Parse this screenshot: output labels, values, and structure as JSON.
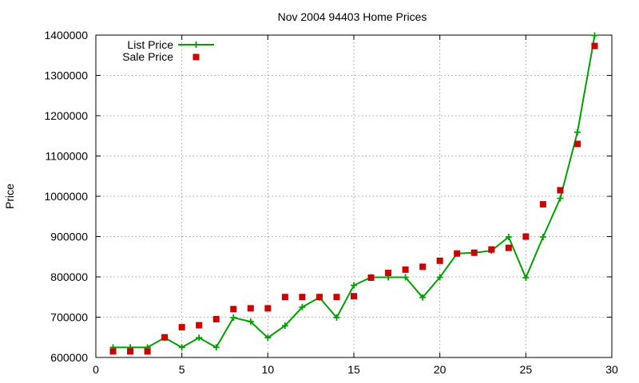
{
  "chart_data": {
    "type": "line",
    "title": "Nov 2004 94403 Home Prices",
    "xlabel": "",
    "ylabel": "Price",
    "xlim": [
      0,
      30
    ],
    "ylim": [
      600000,
      1400000
    ],
    "x_ticks": [
      0,
      5,
      10,
      15,
      20,
      25,
      30
    ],
    "y_ticks": [
      600000,
      700000,
      800000,
      900000,
      1000000,
      1100000,
      1200000,
      1300000,
      1400000
    ],
    "grid": true,
    "legend_position": "top-left",
    "x": [
      1,
      2,
      3,
      4,
      5,
      6,
      7,
      8,
      9,
      10,
      11,
      12,
      13,
      14,
      15,
      16,
      17,
      18,
      19,
      20,
      21,
      22,
      23,
      24,
      25,
      26,
      27,
      28,
      29
    ],
    "series": [
      {
        "name": "List Price",
        "style": "line-with-plus-markers",
        "color": "#00a000",
        "values": [
          625000,
          625000,
          625000,
          649000,
          625000,
          649000,
          625000,
          699000,
          689000,
          649000,
          679000,
          725000,
          749000,
          699000,
          779000,
          799000,
          799000,
          799000,
          749000,
          799000,
          858000,
          860000,
          865000,
          899000,
          798000,
          899000,
          995000,
          1159000,
          1399000
        ]
      },
      {
        "name": "Sale Price",
        "style": "square-markers",
        "color": "#cc0000",
        "values": [
          615000,
          615000,
          615000,
          650000,
          675000,
          680000,
          695000,
          720000,
          722000,
          722000,
          750000,
          750000,
          750000,
          750000,
          752000,
          798000,
          810000,
          818000,
          825000,
          840000,
          858000,
          860000,
          868000,
          872000,
          900000,
          980000,
          1015000,
          1130000,
          1373000
        ]
      }
    ]
  }
}
